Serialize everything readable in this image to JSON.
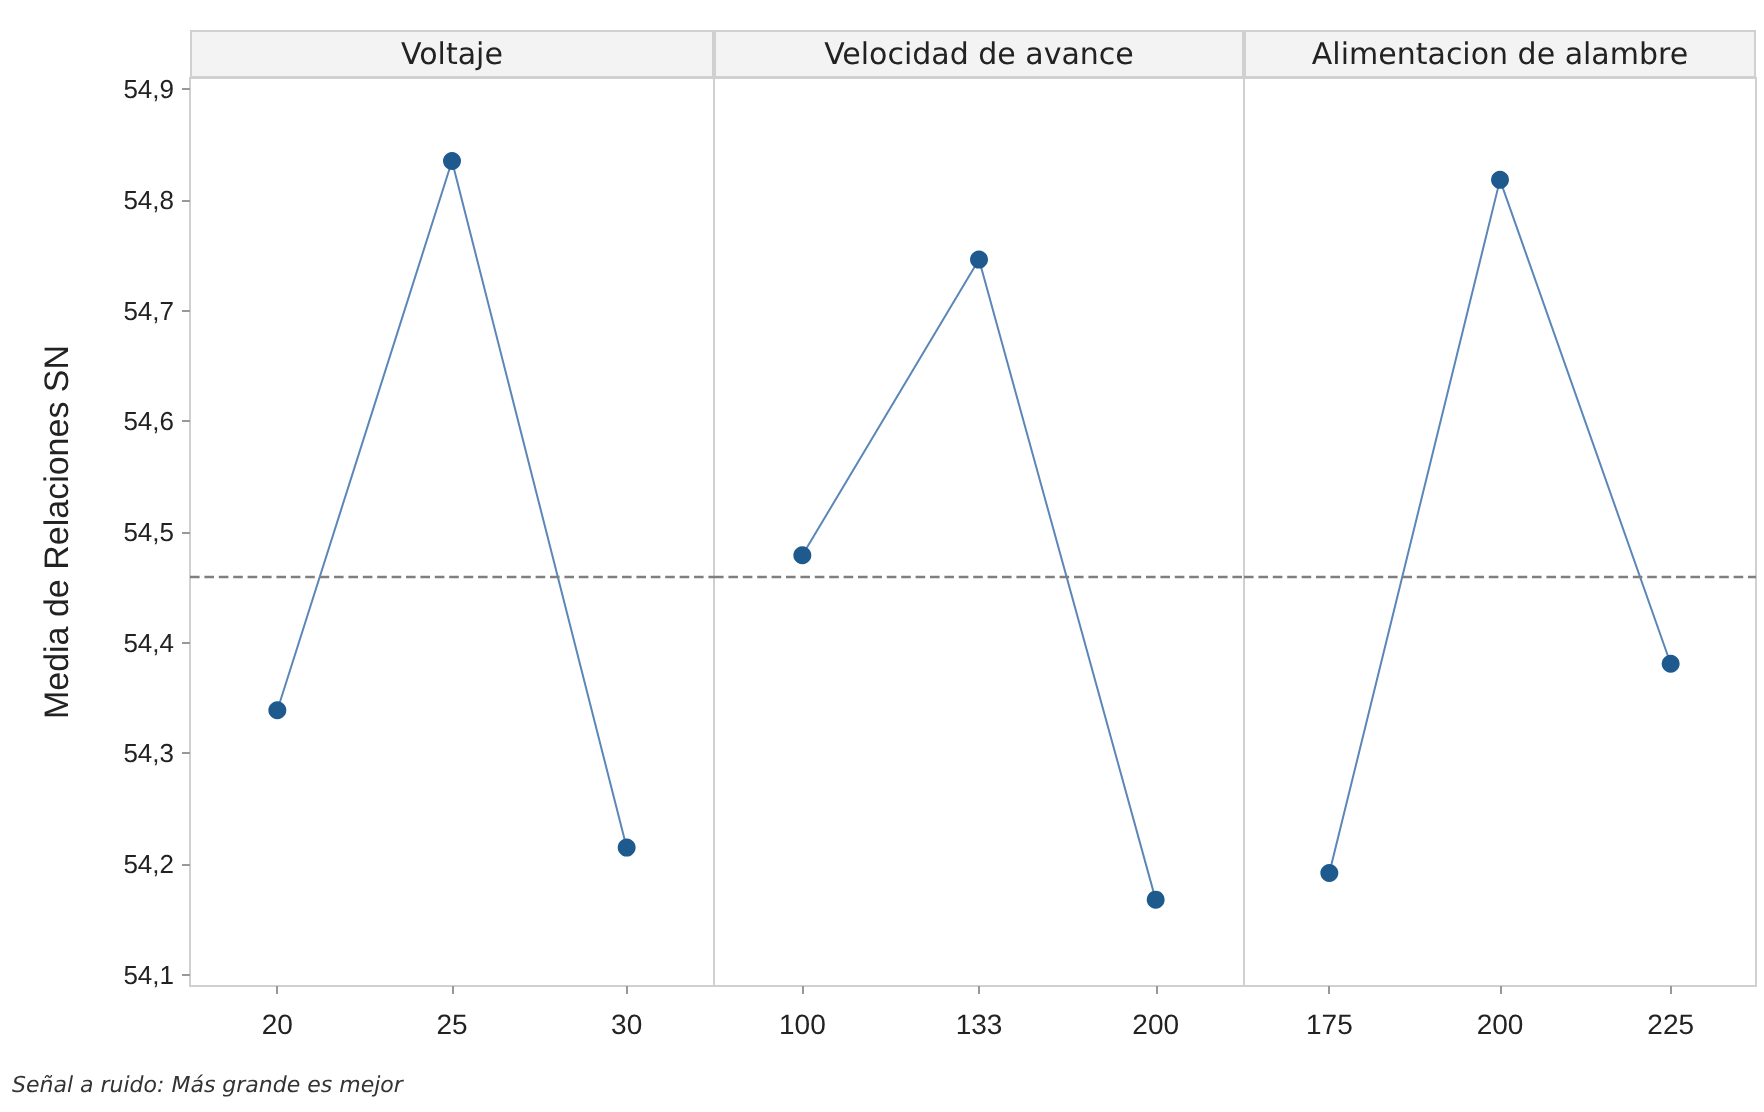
{
  "chart_data": [
    {
      "type": "line",
      "title": "Voltaje",
      "ylabel": "Media de Relaciones SN",
      "categories": [
        "20",
        "25",
        "30"
      ],
      "series": [
        {
          "color": "#1f5a8f",
          "values": [
            54.339,
            54.835,
            54.215
          ]
        }
      ],
      "marker": "circle",
      "line_style": "solid",
      "ylim": [
        54.09,
        54.91
      ],
      "yticks": [
        {
          "value": 54.1,
          "label": "54,1"
        },
        {
          "value": 54.2,
          "label": "54,2"
        },
        {
          "value": 54.3,
          "label": "54,3"
        },
        {
          "value": 54.4,
          "label": "54,4"
        },
        {
          "value": 54.5,
          "label": "54,5"
        },
        {
          "value": 54.6,
          "label": "54,6"
        },
        {
          "value": 54.7,
          "label": "54,7"
        },
        {
          "value": 54.8,
          "label": "54,8"
        },
        {
          "value": 54.9,
          "label": "54,9"
        }
      ],
      "ref_lines": [
        {
          "axis": "y",
          "value": 54.462,
          "label": null,
          "color": "#7f7f7f",
          "line_style": "dashed"
        }
      ],
      "annotations": [
        "Señal a ruido: Más grande es mejor"
      ]
    },
    {
      "type": "line",
      "title": "Velocidad de avance",
      "categories": [
        "100",
        "133",
        "200"
      ],
      "series": [
        {
          "color": "#1f5a8f",
          "values": [
            54.479,
            54.746,
            54.168
          ]
        }
      ],
      "marker": "circle",
      "line_style": "solid",
      "ylim": [
        54.09,
        54.91
      ],
      "tick_labels": "x",
      "ref_lines": [
        {
          "axis": "y",
          "value": 54.462,
          "label": null,
          "color": "#7f7f7f",
          "line_style": "dashed"
        }
      ]
    },
    {
      "type": "line",
      "title": "Alimentacion de alambre",
      "categories": [
        "175",
        "200",
        "225"
      ],
      "series": [
        {
          "color": "#1f5a8f",
          "values": [
            54.192,
            54.818,
            54.381
          ]
        }
      ],
      "marker": "circle",
      "line_style": "solid",
      "ylim": [
        54.09,
        54.91
      ],
      "tick_labels": "x",
      "ref_lines": [
        {
          "axis": "y",
          "value": 54.462,
          "label": null,
          "color": "#7f7f7f",
          "line_style": "dashed"
        }
      ]
    }
  ]
}
